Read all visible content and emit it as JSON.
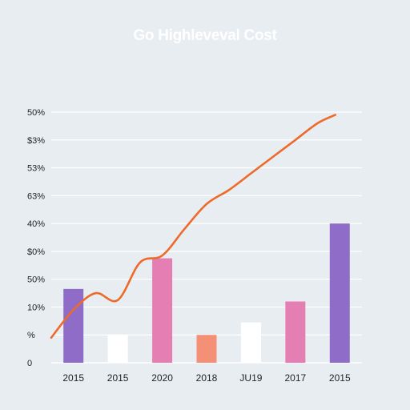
{
  "chart_data": {
    "type": "bar",
    "title": "Go Highleveval Cost",
    "xlabel": "",
    "ylabel": "",
    "grid": true,
    "y_tick_labels": [
      "0",
      "%",
      "10%",
      "50%",
      "$0%",
      "40%",
      "63%",
      "53%",
      "$3%",
      "50%"
    ],
    "categories": [
      "2015",
      "2015",
      "2020",
      "2018",
      "JU19",
      "2017",
      "2015"
    ],
    "ylim": [
      0,
      9
    ],
    "bars": {
      "values": [
        2.65,
        1.0,
        3.75,
        1.0,
        1.45,
        2.2,
        5.0
      ],
      "colors": [
        "#8e6cc7",
        "#ffffff",
        "#e57fb3",
        "#f39076",
        "#ffffff",
        "#e57fb3",
        "#8e6cc7"
      ]
    },
    "line": {
      "color": "#ee6a2a",
      "x": [
        0,
        0.5,
        1,
        1.5,
        2,
        2.5,
        3,
        3.5,
        4,
        4.5,
        5,
        5.5,
        6,
        6.4
      ],
      "y": [
        0.9,
        1.9,
        2.5,
        2.25,
        3.6,
        3.85,
        4.8,
        5.7,
        6.2,
        6.8,
        7.4,
        8.0,
        8.6,
        8.9
      ]
    }
  }
}
